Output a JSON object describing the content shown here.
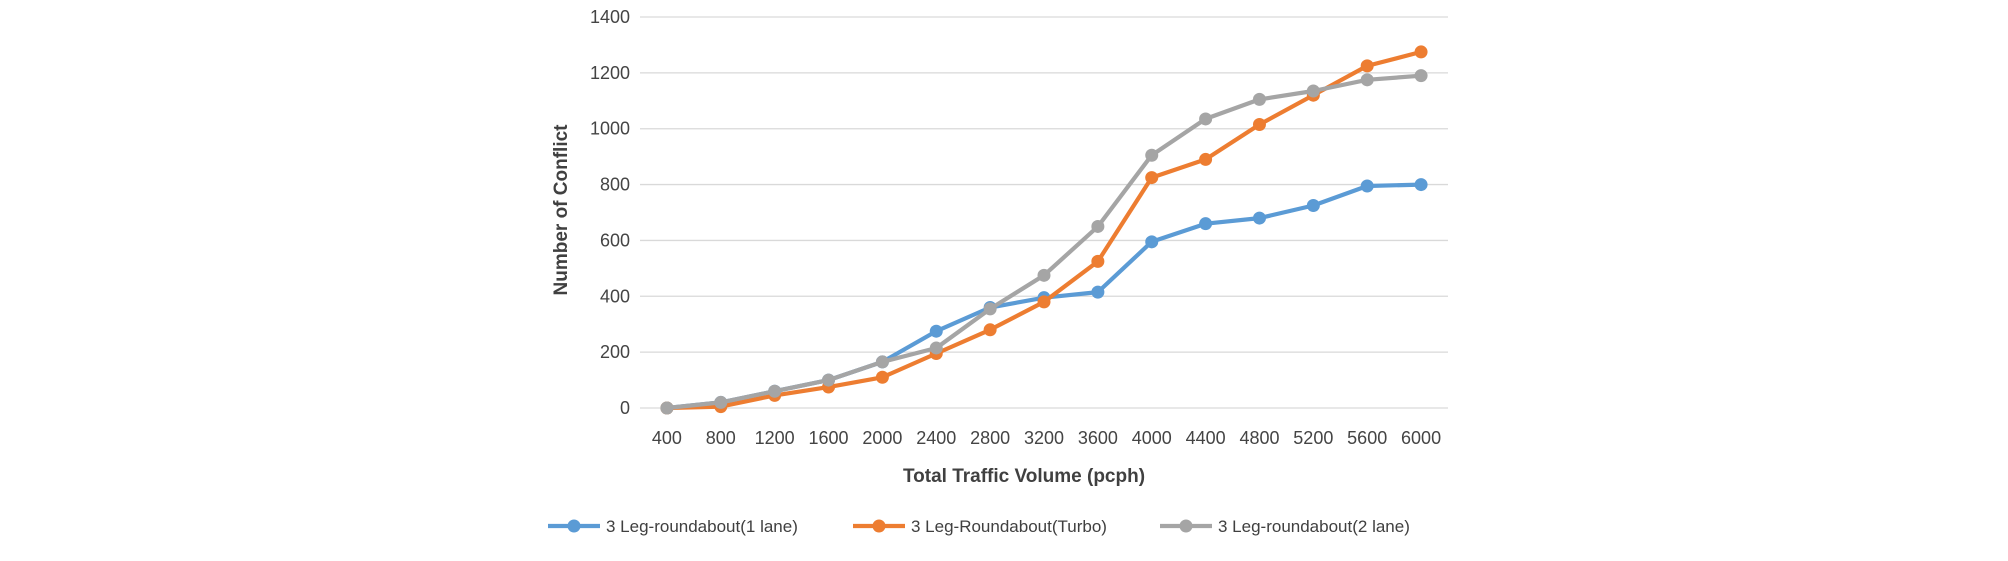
{
  "chart_data": {
    "type": "line",
    "title": "",
    "xlabel": "Total Traffic Volume (pcph)",
    "ylabel": "Number of Conflict",
    "categories": [
      "400",
      "800",
      "1200",
      "1600",
      "2000",
      "2400",
      "2800",
      "3200",
      "3600",
      "4000",
      "4400",
      "4800",
      "5200",
      "5600",
      "6000"
    ],
    "ylim": [
      0,
      1400
    ],
    "yticks": [
      0,
      200,
      400,
      600,
      800,
      1000,
      1200,
      1400
    ],
    "grid": "horizontal",
    "legend": "bottom",
    "series": [
      {
        "name": "3 Leg-roundabout(1 lane)",
        "color": "#5b9bd5",
        "values": [
          0,
          20,
          60,
          100,
          165,
          275,
          360,
          395,
          415,
          595,
          660,
          680,
          725,
          795,
          800
        ]
      },
      {
        "name": "3 Leg-Roundabout(Turbo)",
        "color": "#ed7d31",
        "values": [
          0,
          5,
          45,
          75,
          110,
          195,
          280,
          380,
          525,
          825,
          890,
          1015,
          1120,
          1225,
          1275
        ]
      },
      {
        "name": "3 Leg-roundabout(2 lane)",
        "color": "#a5a5a5",
        "values": [
          0,
          20,
          60,
          100,
          165,
          215,
          355,
          475,
          650,
          905,
          1035,
          1105,
          1135,
          1175,
          1190
        ]
      }
    ]
  }
}
